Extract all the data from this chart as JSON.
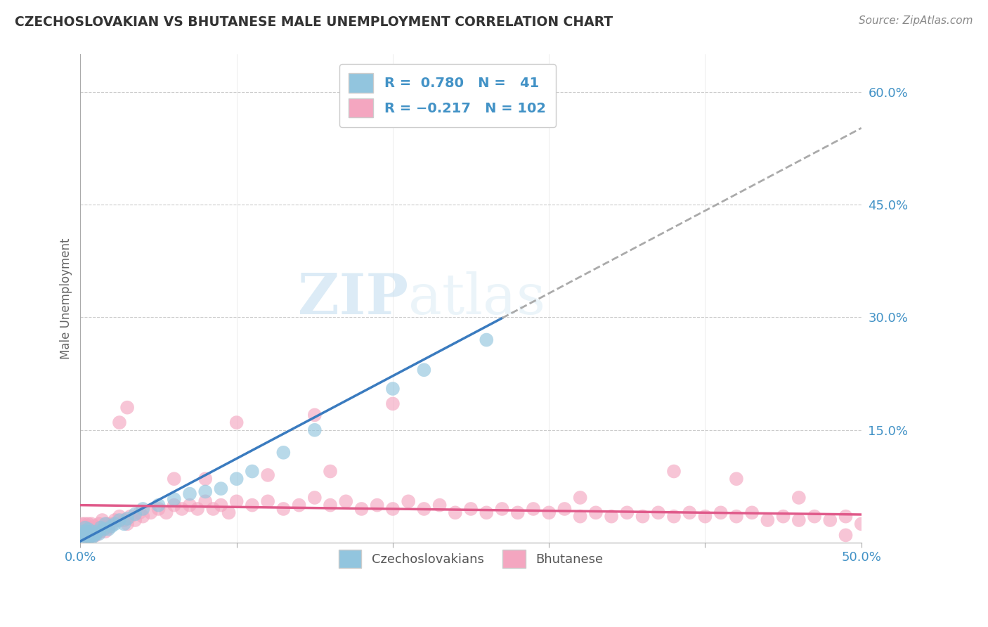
{
  "title": "CZECHOSLOVAKIAN VS BHUTANESE MALE UNEMPLOYMENT CORRELATION CHART",
  "source": "Source: ZipAtlas.com",
  "ylabel": "Male Unemployment",
  "xlim": [
    0,
    0.5
  ],
  "ylim": [
    0,
    0.65
  ],
  "yticks": [
    0.15,
    0.3,
    0.45,
    0.6
  ],
  "ytick_labels": [
    "15.0%",
    "30.0%",
    "45.0%",
    "60.0%"
  ],
  "xtick_labels": [
    "0.0%",
    "50.0%"
  ],
  "watermark_zip": "ZIP",
  "watermark_atlas": "atlas",
  "blue_color": "#92c5de",
  "pink_color": "#f4a6c0",
  "blue_line_color": "#3a7bbf",
  "pink_line_color": "#e05a8a",
  "blue_scatter": {
    "x": [
      0.001,
      0.002,
      0.002,
      0.003,
      0.003,
      0.004,
      0.004,
      0.005,
      0.005,
      0.006,
      0.006,
      0.007,
      0.007,
      0.008,
      0.009,
      0.01,
      0.011,
      0.012,
      0.013,
      0.015,
      0.016,
      0.018,
      0.02,
      0.022,
      0.025,
      0.028,
      0.03,
      0.035,
      0.04,
      0.05,
      0.06,
      0.07,
      0.08,
      0.09,
      0.1,
      0.11,
      0.13,
      0.15,
      0.2,
      0.22,
      0.26
    ],
    "y": [
      0.01,
      0.008,
      0.015,
      0.012,
      0.02,
      0.008,
      0.015,
      0.01,
      0.018,
      0.008,
      0.012,
      0.01,
      0.015,
      0.008,
      0.01,
      0.012,
      0.015,
      0.012,
      0.02,
      0.018,
      0.025,
      0.018,
      0.022,
      0.025,
      0.03,
      0.025,
      0.032,
      0.038,
      0.045,
      0.05,
      0.058,
      0.065,
      0.068,
      0.072,
      0.085,
      0.095,
      0.12,
      0.15,
      0.205,
      0.23,
      0.27
    ]
  },
  "pink_scatter": {
    "x": [
      0.001,
      0.001,
      0.002,
      0.002,
      0.003,
      0.003,
      0.004,
      0.004,
      0.005,
      0.005,
      0.006,
      0.006,
      0.007,
      0.007,
      0.008,
      0.008,
      0.009,
      0.009,
      0.01,
      0.01,
      0.011,
      0.012,
      0.013,
      0.014,
      0.015,
      0.016,
      0.017,
      0.018,
      0.02,
      0.022,
      0.025,
      0.028,
      0.03,
      0.032,
      0.035,
      0.038,
      0.04,
      0.045,
      0.05,
      0.055,
      0.06,
      0.065,
      0.07,
      0.075,
      0.08,
      0.085,
      0.09,
      0.095,
      0.1,
      0.11,
      0.12,
      0.13,
      0.14,
      0.15,
      0.16,
      0.17,
      0.18,
      0.19,
      0.2,
      0.21,
      0.22,
      0.23,
      0.24,
      0.25,
      0.26,
      0.27,
      0.28,
      0.29,
      0.3,
      0.31,
      0.32,
      0.33,
      0.34,
      0.35,
      0.36,
      0.37,
      0.38,
      0.39,
      0.4,
      0.41,
      0.42,
      0.43,
      0.44,
      0.45,
      0.46,
      0.47,
      0.48,
      0.49,
      0.5,
      0.025,
      0.03,
      0.1,
      0.15,
      0.2,
      0.06,
      0.08,
      0.12,
      0.16,
      0.32,
      0.38,
      0.42,
      0.46,
      0.49
    ],
    "y": [
      0.015,
      0.025,
      0.01,
      0.02,
      0.015,
      0.025,
      0.01,
      0.02,
      0.015,
      0.025,
      0.01,
      0.02,
      0.015,
      0.025,
      0.01,
      0.018,
      0.015,
      0.022,
      0.01,
      0.018,
      0.02,
      0.025,
      0.015,
      0.03,
      0.02,
      0.015,
      0.025,
      0.02,
      0.025,
      0.03,
      0.035,
      0.03,
      0.025,
      0.035,
      0.03,
      0.04,
      0.035,
      0.04,
      0.045,
      0.04,
      0.05,
      0.045,
      0.05,
      0.045,
      0.055,
      0.045,
      0.05,
      0.04,
      0.055,
      0.05,
      0.055,
      0.045,
      0.05,
      0.06,
      0.05,
      0.055,
      0.045,
      0.05,
      0.045,
      0.055,
      0.045,
      0.05,
      0.04,
      0.045,
      0.04,
      0.045,
      0.04,
      0.045,
      0.04,
      0.045,
      0.035,
      0.04,
      0.035,
      0.04,
      0.035,
      0.04,
      0.035,
      0.04,
      0.035,
      0.04,
      0.035,
      0.04,
      0.03,
      0.035,
      0.03,
      0.035,
      0.03,
      0.035,
      0.025,
      0.16,
      0.18,
      0.16,
      0.17,
      0.185,
      0.085,
      0.085,
      0.09,
      0.095,
      0.06,
      0.095,
      0.085,
      0.06,
      0.01
    ]
  },
  "blue_regression": {
    "x_start": 0.0,
    "x_end_solid": 0.27,
    "x_end_dashed": 0.5,
    "slope": 1.1,
    "intercept": 0.002
  },
  "pink_regression": {
    "x_start": 0.0,
    "x_end": 0.5,
    "slope": -0.025,
    "intercept": 0.05
  }
}
